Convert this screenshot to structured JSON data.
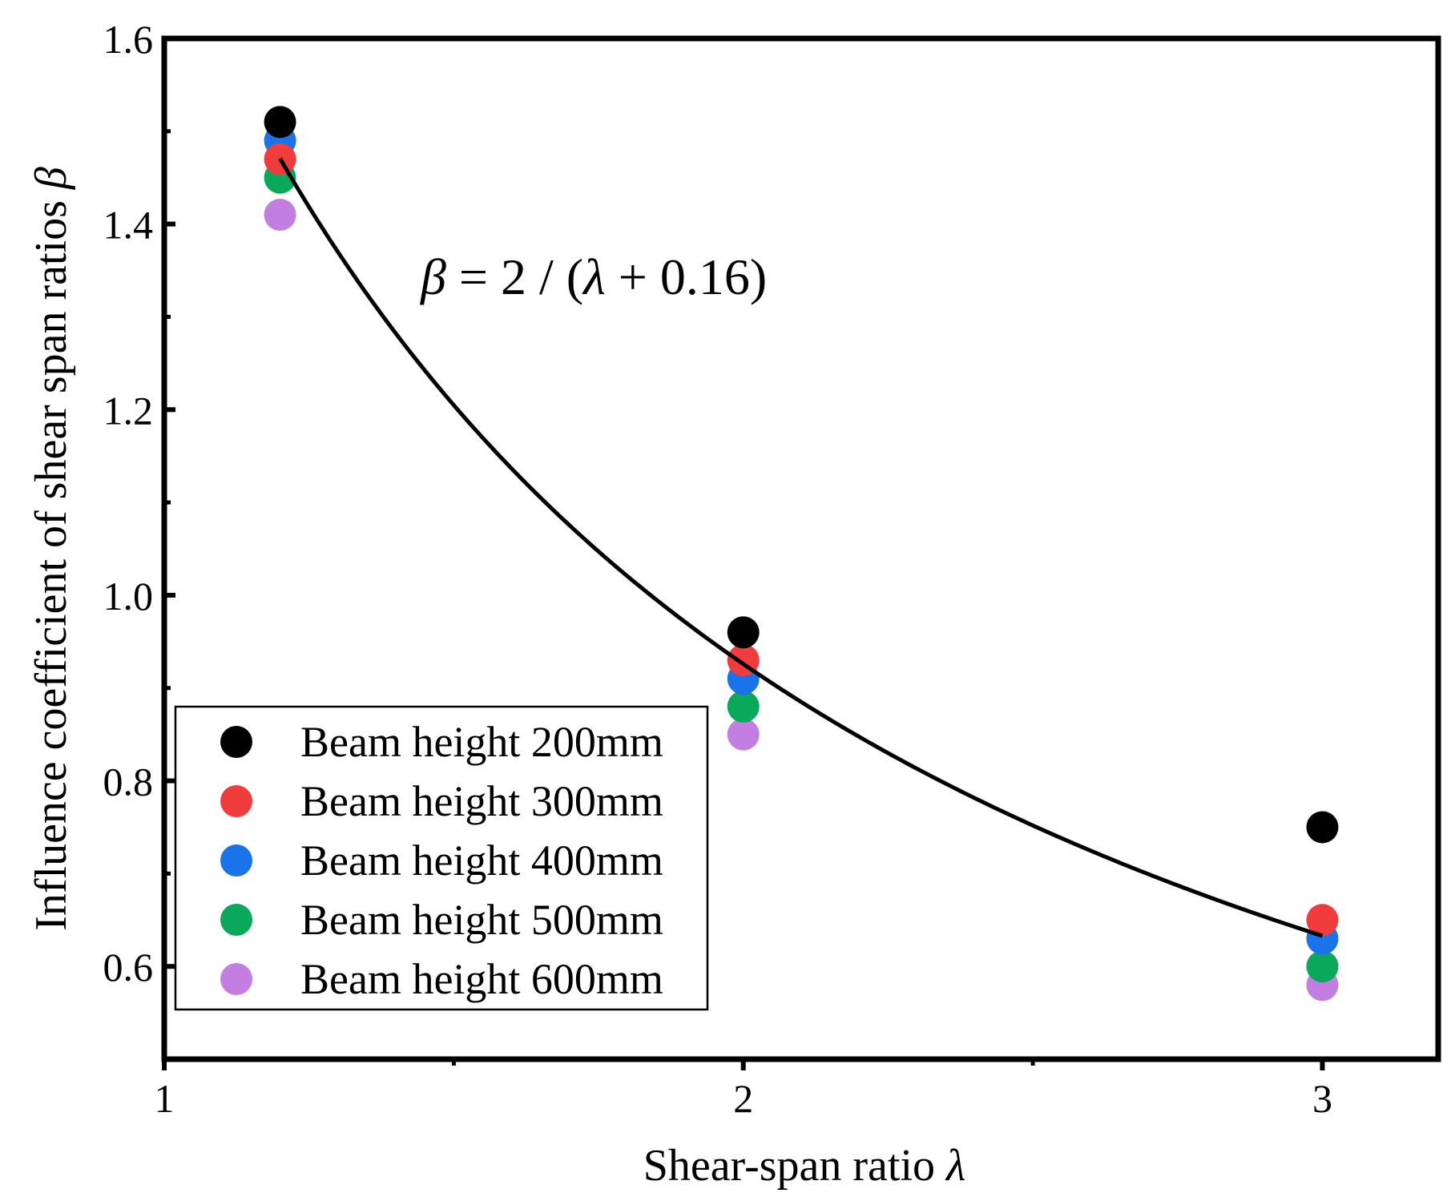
{
  "chart_data": {
    "type": "scatter",
    "title": "",
    "xlabel": "Shear-span ratio",
    "xlabel_symbol": "λ",
    "ylabel": "Influence coefficient of shear span ratios",
    "ylabel_symbol": "β",
    "xlim": [
      1,
      3.2
    ],
    "ylim": [
      0.5,
      1.6
    ],
    "xticks": [
      1,
      2,
      3
    ],
    "xtick_labels": [
      "1",
      "2",
      "3"
    ],
    "yticks": [
      0.6,
      0.8,
      1.0,
      1.2,
      1.4,
      1.6
    ],
    "ytick_labels": [
      "0.6",
      "0.8",
      "1.0",
      "1.2",
      "1.4",
      "1.6"
    ],
    "x": [
      1.2,
      2,
      3
    ],
    "series": [
      {
        "name": "Beam height 200mm",
        "color": "#000000",
        "values": [
          1.51,
          0.96,
          0.75
        ]
      },
      {
        "name": "Beam height 300mm",
        "color": "#f03c3c",
        "values": [
          1.47,
          0.93,
          0.65
        ]
      },
      {
        "name": "Beam height 400mm",
        "color": "#1a73e8",
        "values": [
          1.49,
          0.91,
          0.63
        ]
      },
      {
        "name": "Beam height 500mm",
        "color": "#0aa85a",
        "values": [
          1.45,
          0.88,
          0.6
        ]
      },
      {
        "name": "Beam height 600mm",
        "color": "#c27ee0",
        "values": [
          1.41,
          0.85,
          0.58
        ]
      }
    ],
    "fit": {
      "equation_parts": {
        "lhs": "β",
        "eq": " = 2 / (",
        "var": "λ",
        "rhs": " + 0.16)"
      },
      "numerator": 2,
      "offset": 0.16,
      "x_range": [
        1.2,
        3
      ],
      "color": "#000000"
    },
    "legend_position": "bottom-left",
    "grid": false
  }
}
